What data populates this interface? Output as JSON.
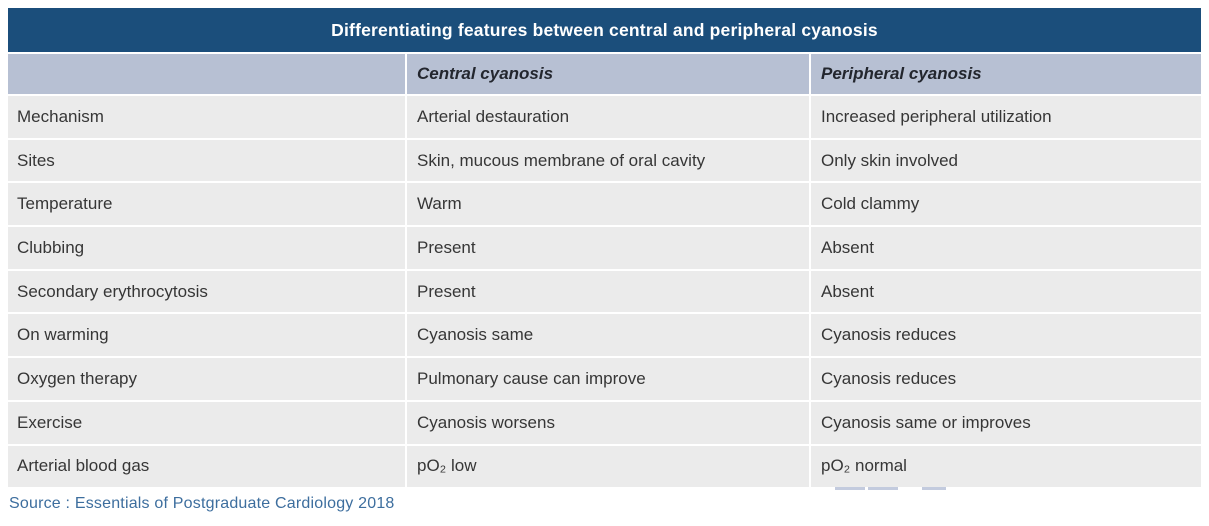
{
  "title": "Differentiating features between central and peripheral cyanosis",
  "table": {
    "header": {
      "feature_col": "",
      "central_col": "Central cyanosis",
      "peripheral_col": "Peripheral cyanosis"
    },
    "rows": [
      {
        "label": "Mechanism",
        "central": "Arterial destauration",
        "peripheral": "Increased peripheral utilization"
      },
      {
        "label": "Sites",
        "central": "Skin, mucous membrane of oral cavity",
        "peripheral": "Only skin involved"
      },
      {
        "label": "Temperature",
        "central": "Warm",
        "peripheral": "Cold clammy"
      },
      {
        "label": "Clubbing",
        "central": "Present",
        "peripheral": "Absent"
      },
      {
        "label": "Secondary erythrocytosis",
        "central": "Present",
        "peripheral": "Absent"
      },
      {
        "label": "On warming",
        "central": "Cyanosis same",
        "peripheral": "Cyanosis reduces"
      },
      {
        "label": "Oxygen therapy",
        "central": "Pulmonary cause can improve",
        "peripheral": "Cyanosis reduces"
      },
      {
        "label": "Exercise",
        "central": "Cyanosis worsens",
        "peripheral": "Cyanosis same or improves"
      },
      {
        "label": "Arterial blood gas",
        "central": "pO₂ low",
        "peripheral": "pO₂ normal"
      }
    ]
  },
  "source": "Source : Essentials of Postgraduate Cardiology 2018",
  "colors": {
    "title_bar": "#1b4e7b",
    "title_text": "#ffffff",
    "header_row": "#b7c0d3",
    "header_text": "#23262e",
    "body_row": "#ebebeb",
    "body_text": "#363636",
    "source_text": "#3d6e9e",
    "row_gutter": "#ffffff"
  }
}
